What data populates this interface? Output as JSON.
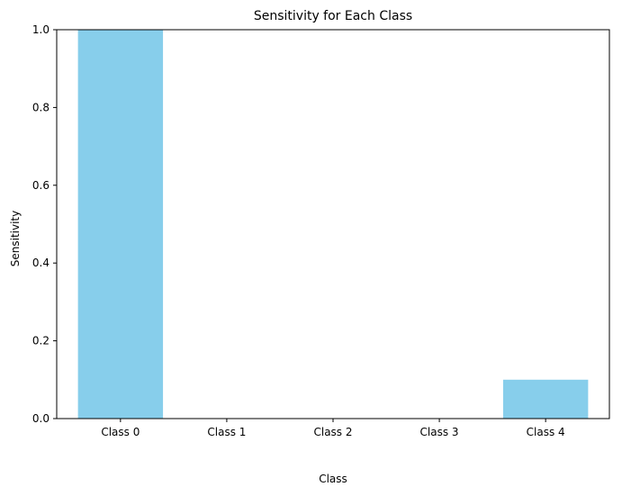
{
  "chart_data": {
    "type": "bar",
    "title": "Sensitivity for Each Class",
    "xlabel": "Class",
    "ylabel": "Sensitivity",
    "categories": [
      "Class 0",
      "Class 1",
      "Class 2",
      "Class 3",
      "Class 4"
    ],
    "values": [
      1.0,
      0.0,
      0.0,
      0.0,
      0.1
    ],
    "ylim": [
      0,
      1.0
    ],
    "yticks": [
      "0.0",
      "0.2",
      "0.4",
      "0.6",
      "0.8",
      "1.0"
    ],
    "grid": false,
    "bar_color": "#87ceeb"
  }
}
